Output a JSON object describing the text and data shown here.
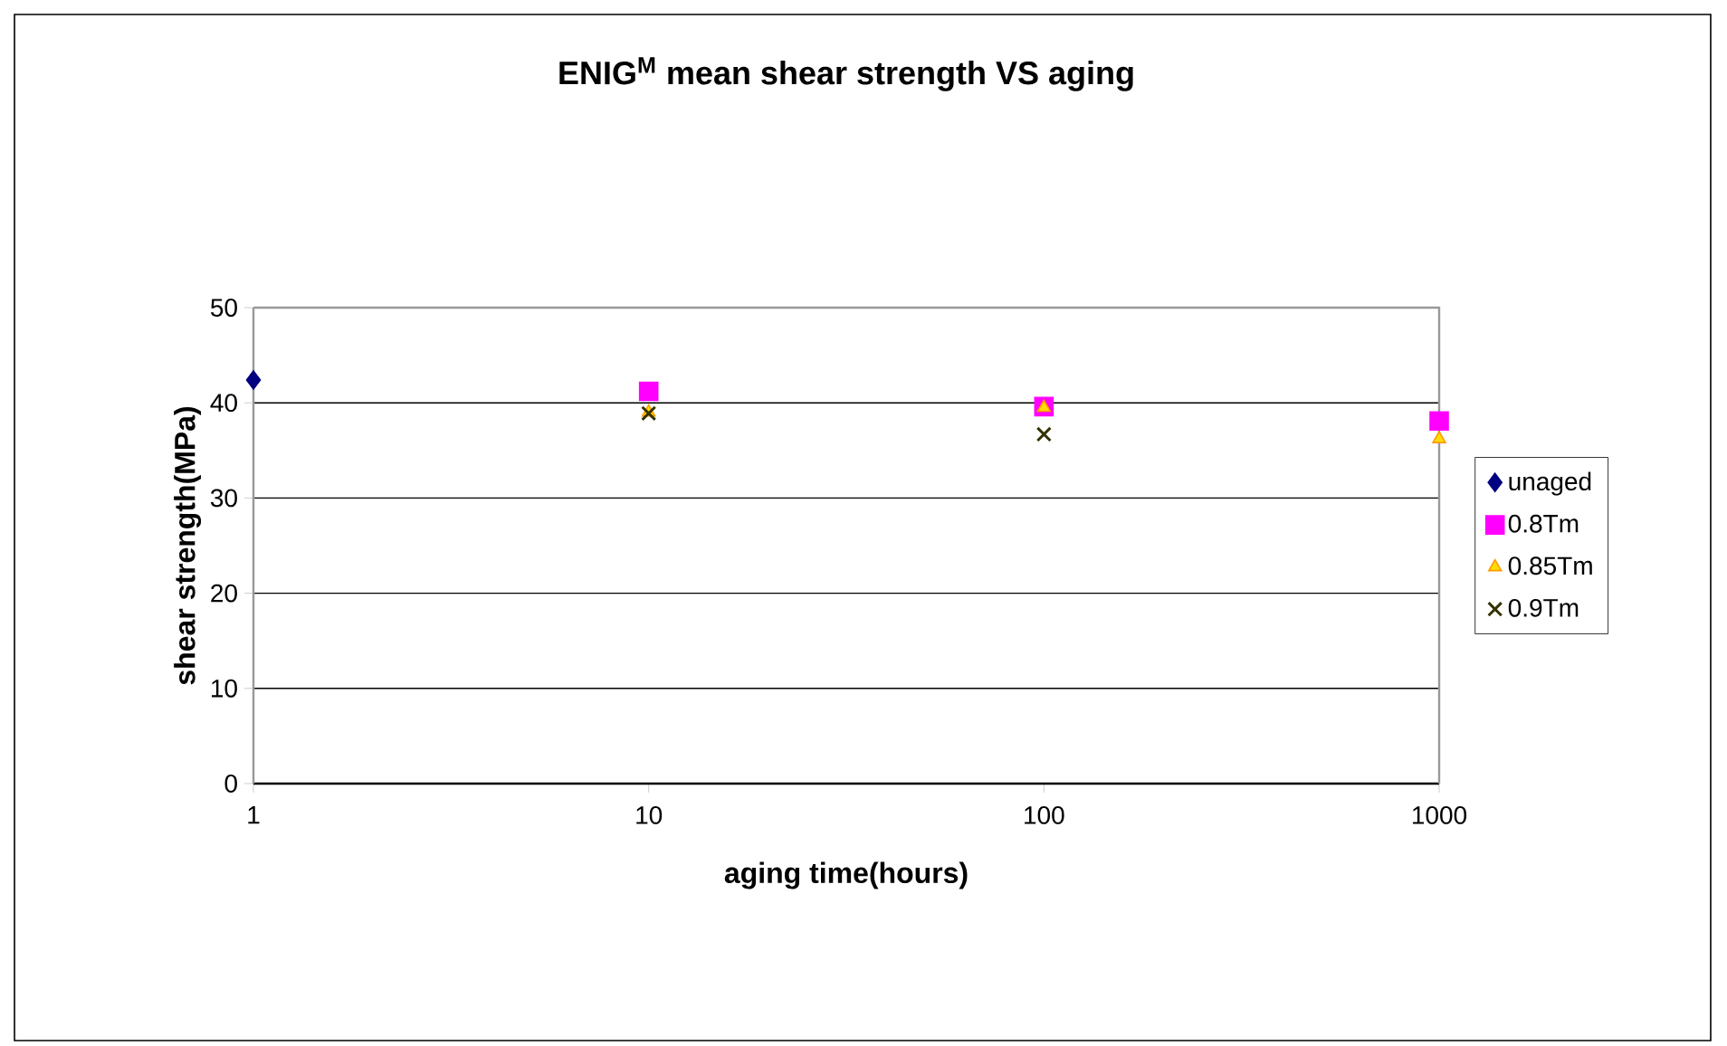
{
  "chart_data": {
    "type": "scatter",
    "title": "ENIG$^{M}$ mean shear strength VS aging",
    "xlabel": "aging time(hours)",
    "ylabel": "shear strength(MPa)",
    "log": "x",
    "x": [
      1,
      10,
      100,
      1000
    ],
    "xlim": [
      1,
      1000
    ],
    "xticks": [
      1,
      10,
      100,
      1000
    ],
    "ylim": [
      0,
      50
    ],
    "yticks": [
      0,
      10,
      20,
      30,
      40,
      50
    ],
    "grid": "y",
    "legend": "right",
    "series": [
      {
        "name": "unaged",
        "color": "#000080",
        "marker": "diamond",
        "values": [
          42.4,
          null,
          null,
          null
        ]
      },
      {
        "name": "0.8Tm",
        "color": "#ff00ff",
        "marker": "square",
        "values": [
          null,
          41.2,
          39.6,
          38.1
        ]
      },
      {
        "name": "0.85Tm",
        "color": "#ff9900",
        "marker": "triangle",
        "values": [
          null,
          39.0,
          39.5,
          36.2
        ]
      },
      {
        "name": "0.9Tm",
        "color": "#333300",
        "marker": "cross",
        "values": [
          null,
          38.9,
          36.7,
          null
        ]
      }
    ]
  }
}
